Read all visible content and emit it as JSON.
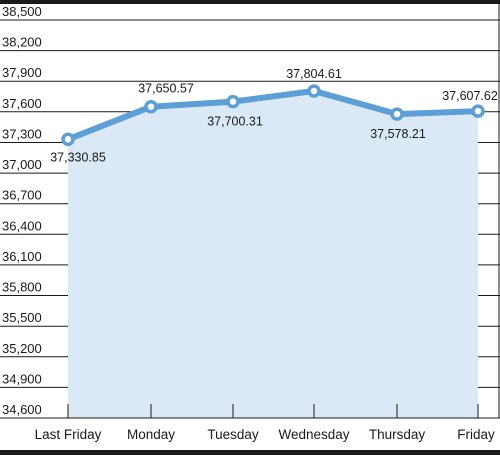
{
  "chart_data": {
    "type": "area",
    "categories": [
      "Last Friday",
      "Monday",
      "Tuesday",
      "Wednesday",
      "Thursday",
      "Friday"
    ],
    "values": [
      37330.85,
      37650.57,
      37700.31,
      37804.61,
      37578.21,
      37607.62
    ],
    "data_labels": [
      "37,330.85",
      "37,650.57",
      "37,700.31",
      "37,804.61",
      "37,578.21",
      "37,607.62"
    ],
    "yticks": [
      34600,
      34900,
      35200,
      35500,
      35800,
      36100,
      36400,
      36700,
      37000,
      37300,
      37600,
      37900,
      38200,
      38500
    ],
    "ytick_labels": [
      "34,600",
      "34,900",
      "35,200",
      "35,500",
      "35,800",
      "36,100",
      "36,400",
      "36,700",
      "37,000",
      "37,300",
      "37,600",
      "37,900",
      "38,200",
      "38,500"
    ],
    "ylim": [
      34600,
      38500
    ],
    "grid": true,
    "legend": "none",
    "title": "",
    "xlabel": "",
    "ylabel": "",
    "colors": {
      "line": "#5b9fd6",
      "fill": "#dbe9f6",
      "marker_fill": "#ffffff",
      "grid": "#1a1a1a",
      "frame": "#1a1a1a"
    }
  }
}
